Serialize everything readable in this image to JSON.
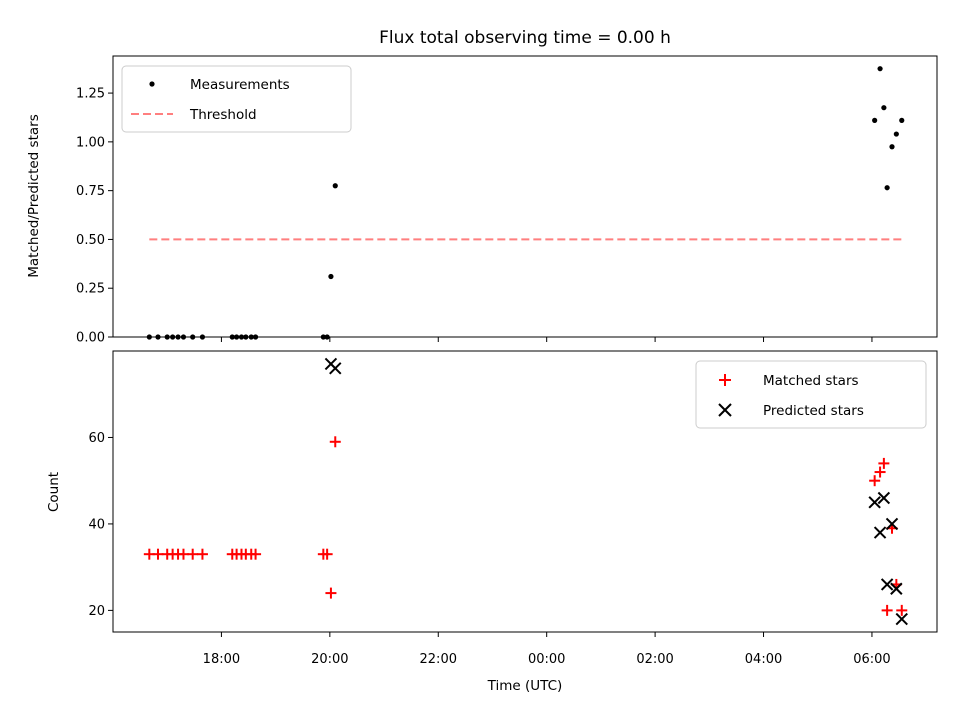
{
  "chart_data": [
    {
      "type": "scatter",
      "title": "Flux total observing time = 0.00 h",
      "xlabel": "",
      "ylabel": "Matched/Predicted stars",
      "ylim": [
        0.0,
        1.44
      ],
      "xlim": [
        16.0,
        31.2
      ],
      "yticks": [
        0.0,
        0.25,
        0.5,
        0.75,
        1.0,
        1.25
      ],
      "ytick_labels": [
        "0.00",
        "0.25",
        "0.50",
        "0.75",
        "1.00",
        "1.25"
      ],
      "legend_position": "upper-left",
      "series": [
        {
          "name": "Measurements",
          "marker": "dot",
          "color": "#000000",
          "x": [
            16.67,
            16.83,
            17.0,
            17.1,
            17.2,
            17.3,
            17.47,
            17.65,
            18.2,
            18.28,
            18.37,
            18.45,
            18.55,
            18.63,
            19.88,
            19.95,
            20.02,
            20.1,
            30.05,
            30.15,
            30.22,
            30.28,
            30.37,
            30.45,
            30.55
          ],
          "y": [
            0.0,
            0.0,
            0.0,
            0.0,
            0.0,
            0.0,
            0.0,
            0.0,
            0.0,
            0.0,
            0.0,
            0.0,
            0.0,
            0.0,
            0.0,
            0.0,
            0.31,
            0.775,
            1.11,
            1.375,
            1.175,
            0.765,
            0.975,
            1.04,
            1.11
          ]
        },
        {
          "name": "Threshold",
          "marker": "dashed-line",
          "color": "#ff7f7f",
          "x": [
            16.67,
            30.55
          ],
          "y": [
            0.5,
            0.5
          ]
        }
      ]
    },
    {
      "type": "scatter",
      "title": "",
      "xlabel": "Time (UTC)",
      "ylabel": "Count",
      "ylim": [
        15.0,
        80.0
      ],
      "xlim": [
        16.0,
        31.2
      ],
      "yticks": [
        20,
        40,
        60
      ],
      "ytick_labels": [
        "20",
        "40",
        "60"
      ],
      "xticks": [
        18,
        20,
        22,
        24,
        26,
        28,
        30
      ],
      "xtick_labels": [
        "18:00",
        "20:00",
        "22:00",
        "00:00",
        "02:00",
        "04:00",
        "06:00"
      ],
      "legend_position": "upper-right",
      "series": [
        {
          "name": "Matched stars",
          "marker": "plus",
          "color": "#ff0000",
          "x": [
            16.67,
            16.83,
            17.0,
            17.1,
            17.2,
            17.3,
            17.47,
            17.65,
            18.2,
            18.28,
            18.37,
            18.45,
            18.55,
            18.63,
            19.88,
            19.95,
            20.02,
            20.1,
            30.05,
            30.15,
            30.22,
            30.28,
            30.37,
            30.45,
            30.55
          ],
          "y": [
            33,
            33,
            33,
            33,
            33,
            33,
            33,
            33,
            33,
            33,
            33,
            33,
            33,
            33,
            33,
            33,
            24,
            59,
            50,
            52,
            54,
            20,
            39,
            26,
            20
          ]
        },
        {
          "name": "Predicted stars",
          "marker": "x",
          "color": "#000000",
          "x": [
            20.02,
            20.1,
            30.05,
            30.15,
            30.22,
            30.28,
            30.37,
            30.45,
            30.55
          ],
          "y": [
            77,
            76,
            45,
            38,
            46,
            26,
            40,
            25,
            18
          ]
        }
      ]
    }
  ]
}
